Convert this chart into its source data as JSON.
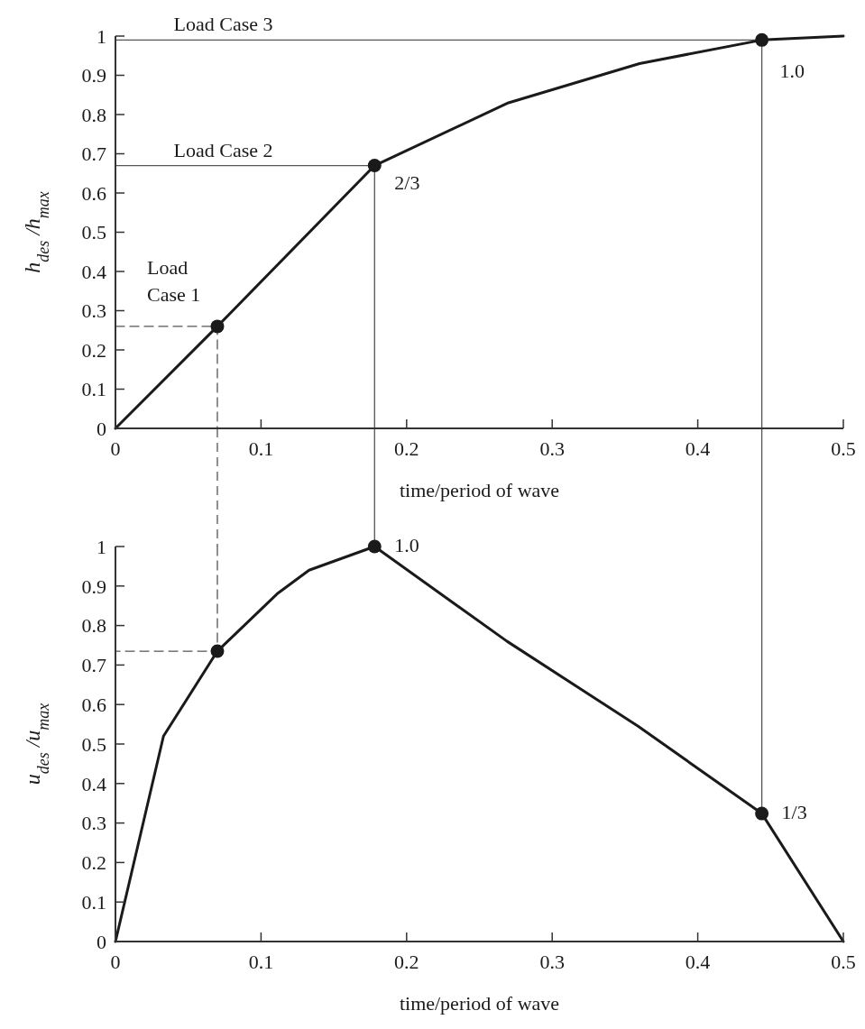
{
  "chart_data": [
    {
      "type": "line",
      "xlabel": "time/period of wave",
      "ylabel": "h$_{des}$ /h$_{max}$",
      "xlim": [
        0,
        0.5
      ],
      "ylim": [
        0,
        1
      ],
      "xticks": [
        0,
        0.1,
        0.2,
        0.3,
        0.4,
        0.5
      ],
      "yticks": [
        0,
        0.1,
        0.2,
        0.3,
        0.4,
        0.5,
        0.6,
        0.7,
        0.8,
        0.9,
        1
      ],
      "series": [
        {
          "color": "#555555",
          "line_style": "dashed",
          "marker": "none",
          "x": [
            0,
            0.07,
            0.07
          ],
          "values": [
            0.26,
            0.26,
            0
          ]
        },
        {
          "color": "#555555",
          "line_style": "solid",
          "marker": "none",
          "x": [
            0,
            0.178,
            0.178
          ],
          "values": [
            0.67,
            0.67,
            0
          ]
        },
        {
          "color": "#555555",
          "line_style": "solid",
          "marker": "none",
          "x": [
            0,
            0.444,
            0.444
          ],
          "values": [
            0.99,
            0.99,
            0
          ]
        },
        {
          "color": "#1a1a1a",
          "marker": "none",
          "x": [
            0,
            0.07,
            0.178,
            0.27,
            0.36,
            0.444,
            0.5
          ],
          "values": [
            0,
            0.26,
            0.67,
            0.83,
            0.93,
            0.99,
            1.0
          ]
        },
        {
          "type": "scatter",
          "color": "#1a1a1a",
          "marker": "circle",
          "x": [
            0.07,
            0.178,
            0.444
          ],
          "values": [
            0.26,
            0.67,
            0.99
          ]
        }
      ],
      "annotations": [
        {
          "text": "Load Case 3",
          "x": 0.04,
          "y": 0.99
        },
        {
          "text": "Load Case 2",
          "x": 0.04,
          "y": 0.67
        },
        {
          "text": "Load Case 1",
          "x": 0.07,
          "y": 0.26
        },
        {
          "text": "2/3",
          "x": 0.178,
          "y": 0.67
        },
        {
          "text": "1.0",
          "x": 0.444,
          "y": 0.99
        }
      ]
    },
    {
      "type": "line",
      "xlabel": "time/period of wave",
      "ylabel": "u$_{des}$ /u$_{max}$",
      "xlim": [
        0,
        0.5
      ],
      "ylim": [
        0,
        1
      ],
      "xticks": [
        0,
        0.1,
        0.2,
        0.3,
        0.4,
        0.5
      ],
      "yticks": [
        0,
        0.1,
        0.2,
        0.3,
        0.4,
        0.5,
        0.6,
        0.7,
        0.8,
        0.9,
        1
      ],
      "series": [
        {
          "color": "#555555",
          "line_style": "dashed",
          "marker": "none",
          "x": [
            0.07,
            0.07,
            0
          ],
          "values": [
            1,
            0.735,
            0.735
          ]
        },
        {
          "color": "#555555",
          "line_style": "solid",
          "marker": "none",
          "x": [
            0.444,
            0.444
          ],
          "values": [
            1,
            0.324
          ]
        },
        {
          "color": "#1a1a1a",
          "marker": "none",
          "x": [
            0,
            0.033,
            0.07,
            0.111,
            0.133,
            0.178,
            0.269,
            0.359,
            0.444,
            0.5
          ],
          "values": [
            0,
            0.52,
            0.735,
            0.88,
            0.94,
            1.0,
            0.76,
            0.545,
            0.324,
            0
          ]
        },
        {
          "type": "scatter",
          "color": "#1a1a1a",
          "marker": "circle",
          "x": [
            0.07,
            0.178,
            0.444
          ],
          "values": [
            0.735,
            1.0,
            0.324
          ]
        }
      ],
      "annotations": [
        {
          "text": "1.0",
          "x": 0.178,
          "y": 1.0
        },
        {
          "text": "1/3",
          "x": 0.444,
          "y": 0.324
        }
      ]
    }
  ]
}
